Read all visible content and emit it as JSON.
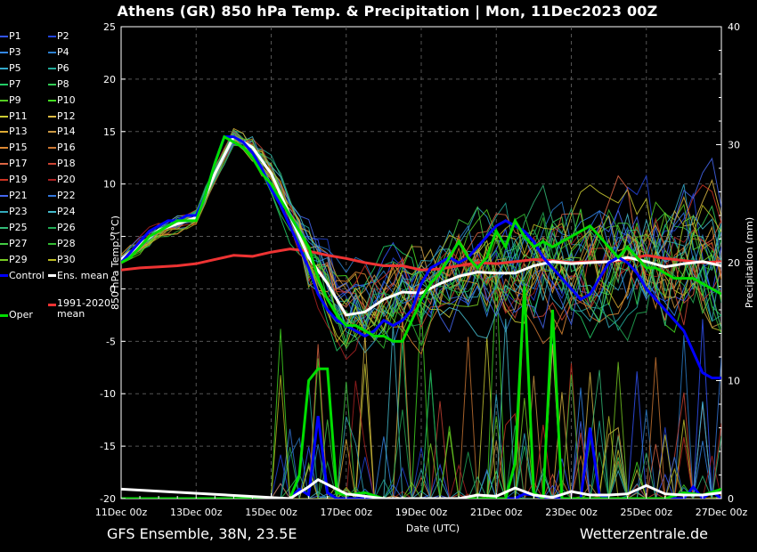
{
  "title": "Athens  (GR)  850 hPa Temp. & Precipitation | Mon, 11Dec2023 00Z",
  "footer": {
    "left": "GFS Ensemble, 38N, 23.5E",
    "right": "Wetterzentrale.de"
  },
  "legend": [
    {
      "label": "P1",
      "color": "#3355ff"
    },
    {
      "label": "P2",
      "color": "#2244dd"
    },
    {
      "label": "P3",
      "color": "#3388ee"
    },
    {
      "label": "P4",
      "color": "#2b7fcf"
    },
    {
      "label": "P5",
      "color": "#33aacc"
    },
    {
      "label": "P6",
      "color": "#22aa99"
    },
    {
      "label": "P7",
      "color": "#22cc66"
    },
    {
      "label": "P8",
      "color": "#33cc55"
    },
    {
      "label": "P9",
      "color": "#55cc22"
    },
    {
      "label": "P10",
      "color": "#44dd22"
    },
    {
      "label": "P11",
      "color": "#cccc33"
    },
    {
      "label": "P12",
      "color": "#ddbb44"
    },
    {
      "label": "P13",
      "color": "#ddaa33"
    },
    {
      "label": "P14",
      "color": "#cc9944"
    },
    {
      "label": "P15",
      "color": "#dd8833"
    },
    {
      "label": "P16",
      "color": "#cc7733"
    },
    {
      "label": "P17",
      "color": "#dd6644"
    },
    {
      "label": "P18",
      "color": "#cc4433"
    },
    {
      "label": "P19",
      "color": "#cc3322"
    },
    {
      "label": "P20",
      "color": "#aa2222"
    },
    {
      "label": "P21",
      "color": "#4466ee"
    },
    {
      "label": "P22",
      "color": "#3377dd"
    },
    {
      "label": "P23",
      "color": "#33aabb"
    },
    {
      "label": "P24",
      "color": "#44bbcc"
    },
    {
      "label": "P25",
      "color": "#33bb77"
    },
    {
      "label": "P26",
      "color": "#22aa55"
    },
    {
      "label": "P27",
      "color": "#44cc44"
    },
    {
      "label": "P28",
      "color": "#33bb33"
    },
    {
      "label": "P29",
      "color": "#77cc22"
    },
    {
      "label": "P30",
      "color": "#bbbb22"
    },
    {
      "label": "Control",
      "color": "#0000ff"
    },
    {
      "label": "Ens. mean",
      "color": "#ffffff"
    },
    {
      "label": "1991-2020\nmean",
      "color": "#ee3333"
    },
    {
      "label": "Oper",
      "color": "#00dd00"
    }
  ],
  "chart_data": {
    "type": "line",
    "title": "Athens  (GR)  850 hPa Temp. & Precipitation | Mon, 11Dec2023 00Z",
    "xlabel": "Date (UTC)",
    "ylabel": "850 hPa Temp. (°C)",
    "y2label": "Precipitation (mm)",
    "x_ticks": [
      "11Dec 00z",
      "13Dec 00z",
      "15Dec 00z",
      "17Dec 00z",
      "19Dec 00z",
      "21Dec 00z",
      "23Dec 00z",
      "25Dec 00z",
      "27Dec 00z"
    ],
    "x_range_days": [
      0,
      16
    ],
    "ylim": [
      -20,
      25
    ],
    "y_ticks": [
      25,
      20,
      15,
      10,
      5,
      0,
      -5,
      -10,
      -15,
      -20
    ],
    "y2lim": [
      0,
      40
    ],
    "y2_ticks": [
      40,
      30,
      20,
      10,
      0
    ],
    "grid": true,
    "series": [
      {
        "name": "Control",
        "color": "#0000ff",
        "width": 3,
        "x": [
          0,
          0.25,
          0.5,
          0.75,
          1,
          1.25,
          1.5,
          1.75,
          2,
          2.25,
          2.5,
          2.75,
          3,
          3.25,
          3.5,
          3.75,
          4,
          4.25,
          4.5,
          4.75,
          5,
          5.25,
          5.5,
          5.75,
          6,
          6.25,
          6.5,
          6.75,
          7,
          7.25,
          7.5,
          7.75,
          8,
          8.25,
          8.5,
          8.75,
          9,
          9.25,
          9.5,
          9.75,
          10,
          10.25,
          10.5,
          10.75,
          11,
          11.25,
          11.5,
          11.75,
          12,
          12.25,
          12.5,
          12.75,
          13,
          13.25,
          13.5,
          13.75,
          14,
          14.25,
          14.5,
          14.75,
          15,
          15.25,
          15.5,
          15.75,
          16
        ],
        "y": [
          2.5,
          3.5,
          4.5,
          5.5,
          6,
          6.5,
          6.5,
          7,
          7,
          9,
          12,
          14.5,
          14.5,
          14,
          13,
          11.5,
          9.5,
          8,
          6,
          4,
          2,
          -0.5,
          -2,
          -3,
          -3.5,
          -4,
          -4.5,
          -4,
          -3,
          -3.5,
          -3,
          -2,
          0.5,
          2,
          2.5,
          3,
          2.5,
          3,
          4,
          5,
          6,
          6.5,
          6,
          5.5,
          4.5,
          3,
          2,
          1,
          0,
          -1,
          -0.5,
          1,
          2.5,
          3,
          2.5,
          1.5,
          0,
          -1,
          -2,
          -3,
          -4,
          -6,
          -8,
          -8.5,
          -8.5
        ]
      },
      {
        "name": "Oper",
        "color": "#00dd00",
        "width": 3,
        "x": [
          0,
          0.25,
          0.5,
          0.75,
          1,
          1.25,
          1.5,
          1.75,
          2,
          2.25,
          2.5,
          2.75,
          3,
          3.25,
          3.5,
          3.75,
          4,
          4.25,
          4.5,
          4.75,
          5,
          5.25,
          5.5,
          5.75,
          6,
          6.25,
          6.5,
          6.75,
          7,
          7.25,
          7.5,
          7.75,
          8,
          8.25,
          8.5,
          8.75,
          9,
          9.25,
          9.5,
          9.75,
          10,
          10.25,
          10.5,
          10.75,
          11,
          11.25,
          11.5,
          11.75,
          12,
          12.25,
          12.5,
          12.75,
          13,
          13.25,
          13.5,
          13.75,
          14,
          14.25,
          14.5,
          14.75,
          15,
          15.25,
          15.5,
          15.75,
          16
        ],
        "y": [
          2.5,
          3,
          4,
          5,
          5.5,
          6,
          6.5,
          6.5,
          6.5,
          9,
          12,
          14.5,
          14,
          13.5,
          12.5,
          11,
          10,
          8.5,
          7,
          5.5,
          4,
          1,
          -1,
          -2.5,
          -3.5,
          -3.5,
          -4,
          -4.5,
          -4.5,
          -5,
          -5,
          -3,
          -1,
          0.5,
          1.5,
          3,
          4.5,
          3,
          2,
          3,
          5.5,
          4,
          6.5,
          5,
          4,
          4.5,
          4,
          4.5,
          5,
          5.5,
          6,
          5,
          4,
          3,
          4,
          3,
          2,
          2,
          1.5,
          1,
          1,
          1,
          0.5,
          0,
          -0.5
        ]
      },
      {
        "name": "Ens. mean",
        "color": "#ffffff",
        "width": 3,
        "x": [
          0,
          0.5,
          1,
          1.5,
          2,
          2.5,
          3,
          3.5,
          4,
          4.5,
          5,
          5.5,
          6,
          6.5,
          7,
          7.5,
          8,
          8.5,
          9,
          9.5,
          10,
          10.5,
          11,
          11.5,
          12,
          12.5,
          13,
          13.5,
          14,
          14.5,
          15,
          15.5,
          16
        ],
        "y": [
          2.8,
          4.2,
          5.6,
          6.2,
          6.8,
          11,
          14.5,
          13.5,
          11,
          7,
          3,
          0.5,
          -2.5,
          -2.2,
          -1,
          -0.3,
          -0.4,
          0.5,
          1.2,
          1.6,
          1.5,
          1.5,
          2.2,
          2.6,
          2.4,
          2.5,
          2.6,
          3,
          2.6,
          2.1,
          2.4,
          2.6,
          2.2
        ]
      },
      {
        "name": "1991-2020 mean",
        "color": "#ee3333",
        "width": 3,
        "x": [
          0,
          0.5,
          1,
          1.5,
          2,
          2.5,
          3,
          3.5,
          4,
          4.5,
          5,
          5.5,
          6,
          6.5,
          7,
          7.5,
          8,
          8.5,
          9,
          9.5,
          10,
          10.5,
          11,
          11.5,
          12,
          12.5,
          13,
          13.5,
          14,
          14.5,
          15,
          15.5,
          16
        ],
        "y": [
          1.8,
          2,
          2.1,
          2.2,
          2.4,
          2.8,
          3.2,
          3.1,
          3.5,
          3.8,
          3.6,
          3.2,
          2.9,
          2.5,
          2.2,
          2.2,
          1.8,
          1.9,
          2.2,
          2.5,
          2.4,
          2.6,
          2.8,
          2.7,
          2.5,
          2.6,
          2.6,
          2.8,
          3.2,
          2.9,
          2.7,
          2.5,
          2.6
        ]
      }
    ],
    "precipitation_mm": [
      {
        "name": "Control",
        "color": "#0000ff",
        "width": 3,
        "x": [
          0,
          4.5,
          4.75,
          5,
          5.25,
          5.5,
          5.75,
          6,
          10.5,
          10.75,
          11,
          11.25,
          11.5,
          11.75,
          12,
          12.25,
          12.5,
          12.75,
          13,
          15,
          15.25,
          15.5,
          15.75,
          16
        ],
        "y": [
          0,
          0,
          0.8,
          0.3,
          7,
          0.5,
          0,
          0,
          0,
          0.4,
          0.3,
          0,
          0,
          0,
          0,
          0,
          6,
          0.3,
          0,
          0,
          1,
          0,
          0.6,
          0
        ]
      },
      {
        "name": "Oper",
        "color": "#00dd00",
        "width": 3,
        "x": [
          0,
          4.5,
          4.75,
          5,
          5.25,
          5.5,
          5.75,
          6,
          6.5,
          7,
          10.25,
          10.5,
          10.75,
          11,
          11.25,
          11.5,
          11.75,
          12,
          14,
          14.5,
          15,
          15.5,
          16
        ],
        "y": [
          0,
          0,
          2,
          10,
          11,
          11,
          0.5,
          0.3,
          0.5,
          0,
          0,
          3,
          18,
          0.5,
          0,
          16,
          0,
          0,
          0,
          0,
          0.5,
          0.3,
          0.8
        ]
      },
      {
        "name": "Ens. mean",
        "color": "#ffffff",
        "width": 3,
        "x": [
          0,
          4.5,
          5,
          5.25,
          5.5,
          6,
          6.5,
          7,
          9,
          9.5,
          10,
          10.5,
          11,
          11.5,
          12,
          12.5,
          13,
          13.5,
          14,
          14.5,
          15,
          15.5,
          16
        ],
        "y": [
          0.8,
          0,
          1,
          1.6,
          1.2,
          0.4,
          0.2,
          0,
          0,
          0.3,
          0.2,
          0.9,
          0.3,
          0.1,
          0.6,
          0.3,
          0.3,
          0.4,
          1.1,
          0.4,
          0.3,
          0.3,
          0.5
        ]
      }
    ]
  }
}
